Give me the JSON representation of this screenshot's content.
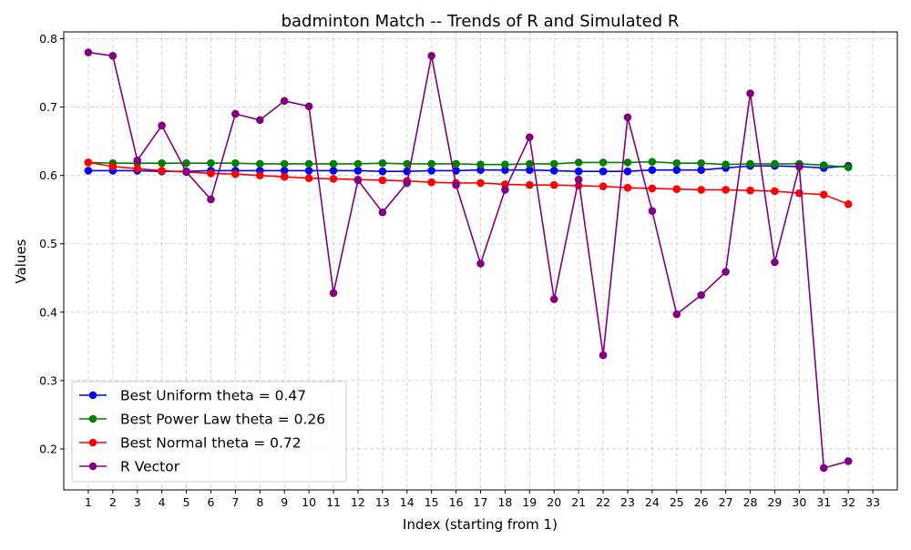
{
  "chart_data": {
    "type": "line",
    "title": "badminton Match -- Trends of R and Simulated R",
    "xlabel": "Index (starting from 1)",
    "ylabel": "Values",
    "x": [
      1,
      2,
      3,
      4,
      5,
      6,
      7,
      8,
      9,
      10,
      11,
      12,
      13,
      14,
      15,
      16,
      17,
      18,
      19,
      20,
      21,
      22,
      23,
      24,
      25,
      26,
      27,
      28,
      29,
      30,
      31,
      32
    ],
    "xticks": [
      "1",
      "2",
      "3",
      "4",
      "5",
      "6",
      "7",
      "8",
      "9",
      "10",
      "11",
      "12",
      "13",
      "14",
      "15",
      "16",
      "17",
      "18",
      "19",
      "20",
      "21",
      "22",
      "23",
      "24",
      "25",
      "26",
      "27",
      "28",
      "29",
      "30",
      "31",
      "32",
      "33"
    ],
    "xlim": [
      0,
      34
    ],
    "ylim": [
      0.14,
      0.81
    ],
    "yticks": [
      "0.2",
      "0.3",
      "0.4",
      "0.5",
      "0.6",
      "0.7",
      "0.8"
    ],
    "grid": true,
    "legend_position": "lower-left",
    "series": [
      {
        "name": "Best Uniform theta = 0.47",
        "color": "#0000ff",
        "values": [
          0.607,
          0.607,
          0.607,
          0.606,
          0.606,
          0.607,
          0.607,
          0.607,
          0.607,
          0.607,
          0.607,
          0.607,
          0.606,
          0.606,
          0.607,
          0.607,
          0.608,
          0.608,
          0.608,
          0.607,
          0.606,
          0.606,
          0.606,
          0.608,
          0.608,
          0.608,
          0.611,
          0.614,
          0.614,
          0.613,
          0.611,
          0.614
        ]
      },
      {
        "name": "Best Power Law theta = 0.26",
        "color": "#008000",
        "values": [
          0.619,
          0.618,
          0.618,
          0.618,
          0.618,
          0.618,
          0.618,
          0.617,
          0.617,
          0.617,
          0.617,
          0.617,
          0.618,
          0.617,
          0.617,
          0.617,
          0.616,
          0.616,
          0.617,
          0.617,
          0.619,
          0.619,
          0.619,
          0.62,
          0.618,
          0.618,
          0.616,
          0.617,
          0.617,
          0.617,
          0.615,
          0.612
        ]
      },
      {
        "name": "Best Normal theta = 0.72",
        "color": "#ff0000",
        "values": [
          0.619,
          0.613,
          0.61,
          0.607,
          0.605,
          0.603,
          0.602,
          0.6,
          0.598,
          0.596,
          0.595,
          0.594,
          0.593,
          0.592,
          0.59,
          0.589,
          0.589,
          0.587,
          0.586,
          0.586,
          0.585,
          0.584,
          0.582,
          0.581,
          0.58,
          0.579,
          0.579,
          0.578,
          0.577,
          0.574,
          0.572,
          0.558
        ]
      },
      {
        "name": "R Vector",
        "color": "#800080",
        "values": [
          0.78,
          0.775,
          0.622,
          0.673,
          0.605,
          0.565,
          0.69,
          0.681,
          0.709,
          0.701,
          0.428,
          0.593,
          0.546,
          0.589,
          0.775,
          0.586,
          0.471,
          0.579,
          0.656,
          0.419,
          0.594,
          0.337,
          0.685,
          0.548,
          0.397,
          0.425,
          0.459,
          0.72,
          0.473,
          0.613,
          0.172,
          0.182
        ]
      }
    ]
  }
}
